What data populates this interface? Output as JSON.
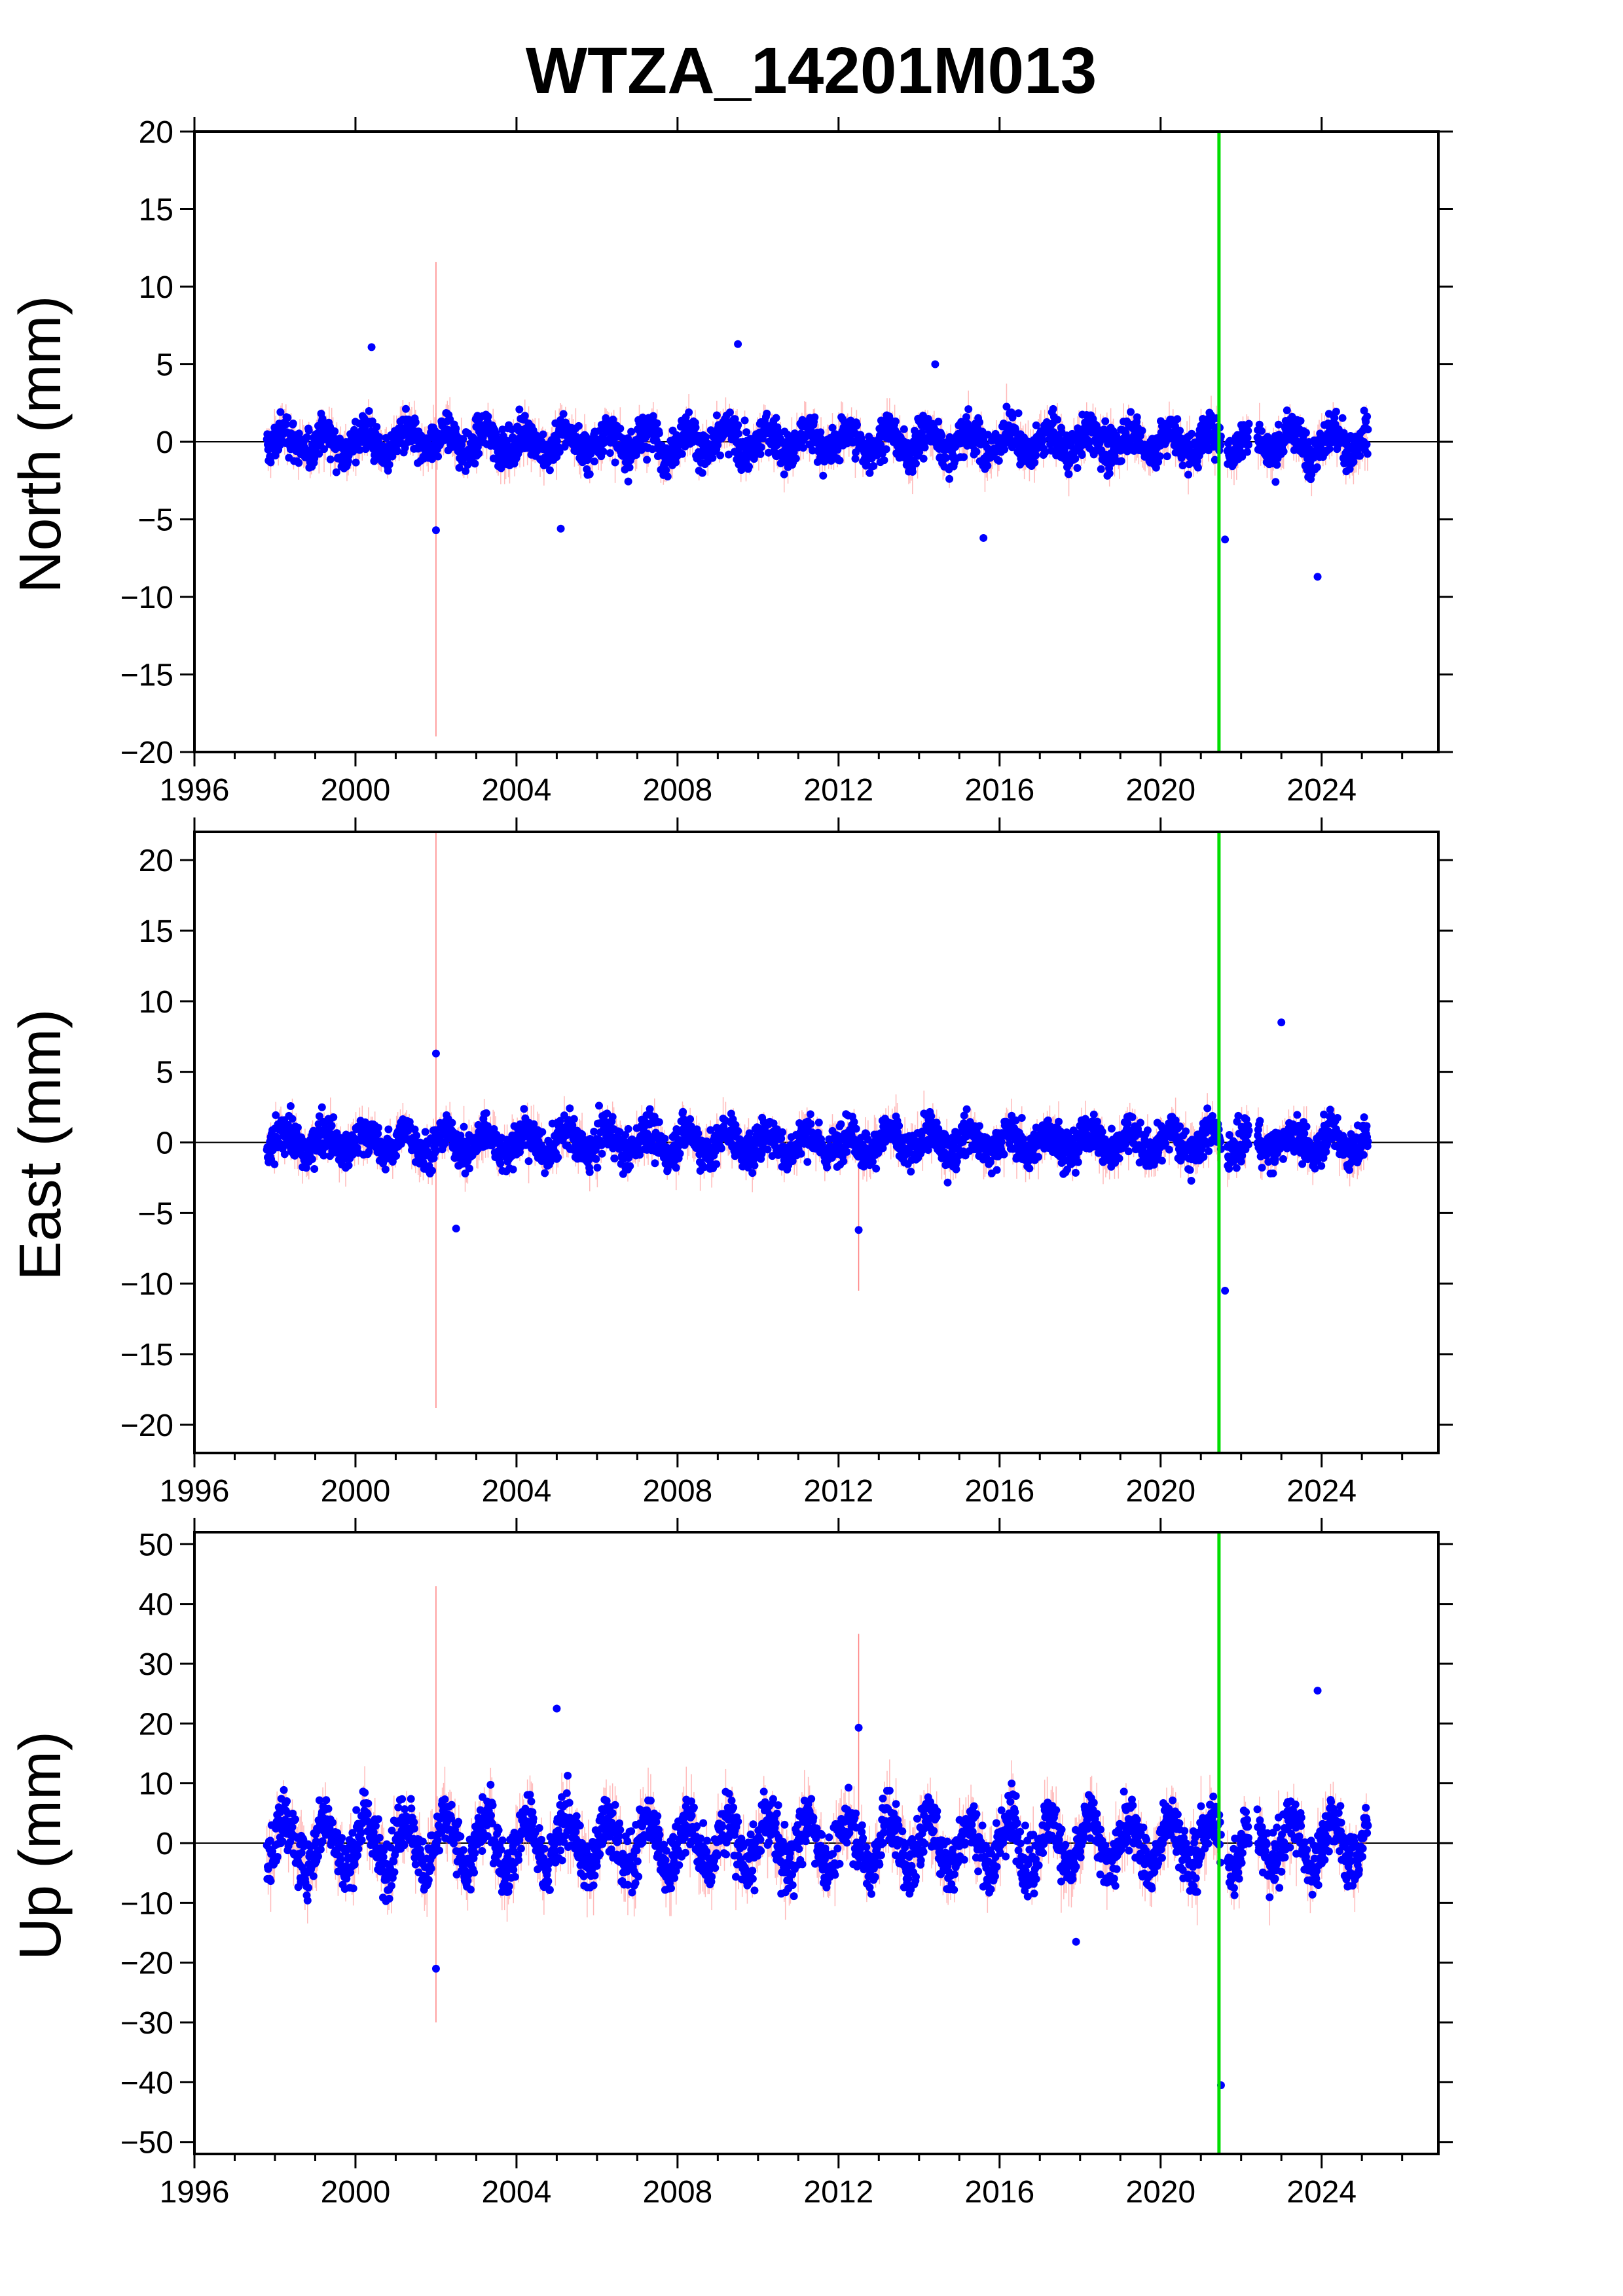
{
  "chart_data": {
    "type": "scatter",
    "title": "WTZA_14201M013",
    "x_unit": "year",
    "xlim": [
      1996,
      2026.9
    ],
    "xticks": [
      1996,
      2000,
      2004,
      2008,
      2012,
      2016,
      2020,
      2024
    ],
    "event_line": {
      "x": 2021.45,
      "color": "#00dd00"
    },
    "data_extent": {
      "start": 1997.8,
      "end": 2025.15
    },
    "colors": {
      "points": "#0000ff",
      "error_bars": "#ff8080",
      "zero_line": "#000000"
    },
    "panels": [
      {
        "ylabel": "North (mm)",
        "ylim": [
          -20,
          20
        ],
        "yticks": [
          -20,
          -15,
          -10,
          -5,
          0,
          5,
          10,
          15,
          20
        ],
        "tick_labels": [
          "−20",
          "−15",
          "−10",
          "−5",
          "0",
          "5",
          "10",
          "15",
          "20"
        ],
        "approx_scatter_std": 1.2,
        "outliers": [
          {
            "x": 2000.4,
            "y": 6.1
          },
          {
            "x": 2002.0,
            "y": -5.7
          },
          {
            "x": 2005.1,
            "y": -5.6
          },
          {
            "x": 2009.5,
            "y": 6.3
          },
          {
            "x": 2014.4,
            "y": 5.0
          },
          {
            "x": 2015.6,
            "y": -6.2
          },
          {
            "x": 2021.6,
            "y": -6.3
          },
          {
            "x": 2023.9,
            "y": -8.7
          }
        ]
      },
      {
        "ylabel": "East (mm)",
        "ylim": [
          -22,
          22
        ],
        "yticks": [
          -20,
          -15,
          -10,
          -5,
          0,
          5,
          10,
          15,
          20
        ],
        "tick_labels": [
          "−20",
          "−15",
          "−10",
          "−5",
          "0",
          "5",
          "10",
          "15",
          "20"
        ],
        "approx_scatter_std": 1.3,
        "outliers": [
          {
            "x": 2002.0,
            "y": 6.3
          },
          {
            "x": 2002.5,
            "y": -6.1
          },
          {
            "x": 2012.5,
            "y": -6.2
          },
          {
            "x": 2021.6,
            "y": -10.5
          },
          {
            "x": 2023.0,
            "y": 8.5
          }
        ]
      },
      {
        "ylabel": "Up (mm)",
        "ylim": [
          -52,
          52
        ],
        "yticks": [
          -50,
          -40,
          -30,
          -20,
          -10,
          0,
          10,
          20,
          30,
          40,
          50
        ],
        "tick_labels": [
          "−50",
          "−40",
          "−30",
          "−20",
          "−10",
          "0",
          "10",
          "20",
          "30",
          "40",
          "50"
        ],
        "approx_scatter_std": 4.5,
        "outliers": [
          {
            "x": 2002.0,
            "y": -21.0
          },
          {
            "x": 2005.0,
            "y": 22.5
          },
          {
            "x": 2012.5,
            "y": 19.3
          },
          {
            "x": 2021.5,
            "y": -40.5
          },
          {
            "x": 2023.9,
            "y": 25.5
          },
          {
            "x": 2017.9,
            "y": -16.5
          }
        ]
      }
    ]
  }
}
